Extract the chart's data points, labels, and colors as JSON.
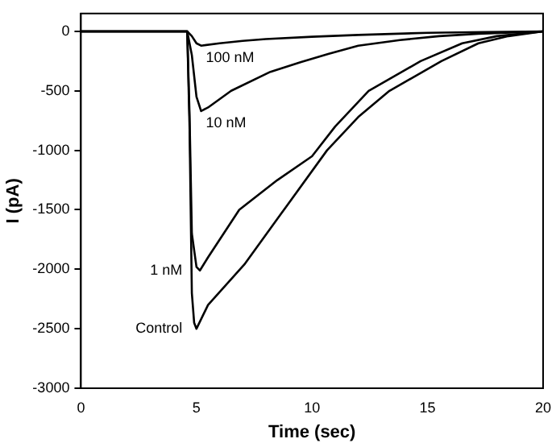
{
  "chart_data": {
    "type": "line",
    "xlabel": "Time (sec)",
    "ylabel": "I (pA)",
    "xlim": [
      0,
      20
    ],
    "ylim": [
      -3000,
      150
    ],
    "xticks": [
      0,
      5,
      10,
      15,
      20
    ],
    "yticks": [
      -3000,
      -2500,
      -2000,
      -1500,
      -1000,
      -500,
      0
    ],
    "grid": false,
    "legend": false,
    "marker": "none",
    "line_style": "solid",
    "series": [
      {
        "name": "100 nM",
        "color": "#000000",
        "x": [
          0,
          4.6,
          4.8,
          5.0,
          5.2,
          6,
          7,
          8,
          10,
          12,
          15,
          17.5,
          20
        ],
        "values": [
          0,
          0,
          -40,
          -100,
          -120,
          -100,
          -80,
          -65,
          -45,
          -30,
          -12,
          -5,
          0
        ]
      },
      {
        "name": "10 nM",
        "color": "#000000",
        "x": [
          0,
          4.6,
          4.8,
          5.0,
          5.2,
          5.5,
          6.5,
          8.2,
          9.5,
          10.7,
          12,
          13.8,
          15.5,
          17.2,
          20
        ],
        "values": [
          0,
          0,
          -200,
          -550,
          -670,
          -640,
          -500,
          -340,
          -260,
          -190,
          -120,
          -73,
          -40,
          -20,
          0
        ]
      },
      {
        "name": "1 nM",
        "color": "#000000",
        "x": [
          0,
          4.6,
          4.7,
          4.8,
          5.0,
          5.15,
          5.5,
          6.85,
          8.5,
          10.0,
          11,
          12.45,
          14.7,
          16.5,
          18,
          20
        ],
        "values": [
          0,
          0,
          -700,
          -1700,
          -1980,
          -2010,
          -1900,
          -1500,
          -1250,
          -1050,
          -800,
          -500,
          -250,
          -100,
          -40,
          0
        ]
      },
      {
        "name": "Control",
        "color": "#000000",
        "x": [
          0,
          4.6,
          4.7,
          4.8,
          4.9,
          5.0,
          5.5,
          7.07,
          8.6,
          10.65,
          12,
          13.35,
          15.6,
          17.2,
          18.5,
          20
        ],
        "values": [
          0,
          0,
          -800,
          -2200,
          -2450,
          -2500,
          -2300,
          -1960,
          -1550,
          -1000,
          -720,
          -500,
          -250,
          -100,
          -40,
          0
        ]
      }
    ]
  }
}
